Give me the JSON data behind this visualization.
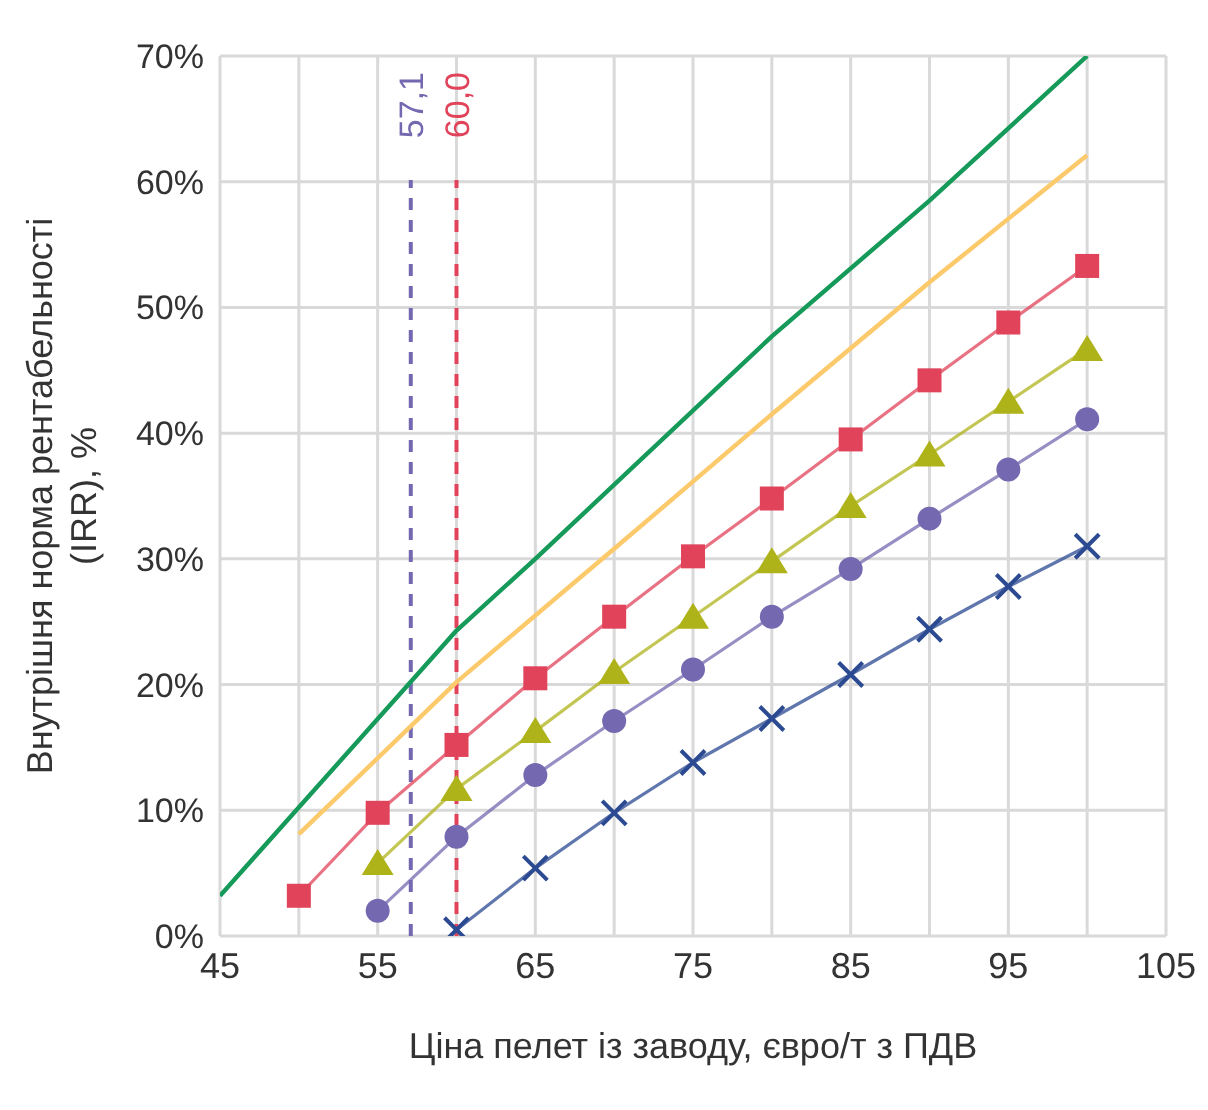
{
  "chart_data": {
    "type": "line",
    "xlabel": "Ціна пелет із заводу, євро/т з ПДВ",
    "ylabel": "Внутрішня норма рентабельності (IRR), %",
    "xlim": [
      45,
      105
    ],
    "xticks": [
      45,
      {
        "value": 50,
        "label": null
      },
      55,
      {
        "value": 60,
        "label": null
      },
      65,
      {
        "value": 70,
        "label": null
      },
      75,
      {
        "value": 80,
        "label": null
      },
      85,
      {
        "value": 90,
        "label": null
      },
      95,
      {
        "value": 100,
        "label": null
      },
      105
    ],
    "ylim": [
      0,
      70
    ],
    "yticks": [
      {
        "value": 0,
        "label": "0%"
      },
      {
        "value": 10,
        "label": "10%"
      },
      {
        "value": 20,
        "label": "20%"
      },
      {
        "value": 30,
        "label": "30%"
      },
      {
        "value": 40,
        "label": "40%"
      },
      {
        "value": 50,
        "label": "50%"
      },
      {
        "value": 60,
        "label": "60%"
      },
      {
        "value": 70,
        "label": "70%"
      }
    ],
    "grid": true,
    "line_style": "solid",
    "series": [
      {
        "color": "#159a5a",
        "marker": "none",
        "x": [
          45,
          60,
          65,
          80,
          90,
          100
        ],
        "values": [
          3.2,
          24.3,
          30,
          47.7,
          58.5,
          70
        ]
      },
      {
        "color": "#fcc96b",
        "marker": "none",
        "x": [
          50,
          60,
          70,
          80,
          90,
          100
        ],
        "values": [
          8.1,
          20.2,
          30.8,
          41.5,
          52,
          62.1
        ]
      },
      {
        "color": "#e0435a",
        "marker": "square",
        "x": [
          50,
          55,
          60,
          65,
          70,
          75,
          80,
          85,
          90,
          95,
          100
        ],
        "values": [
          3.2,
          9.8,
          15.2,
          20.5,
          25.4,
          30.2,
          34.8,
          39.5,
          44.2,
          48.8,
          53.3
        ]
      },
      {
        "color": "#afb31a",
        "marker": "triangle",
        "x": [
          55,
          60,
          65,
          70,
          75,
          80,
          85,
          90,
          95,
          100
        ],
        "values": [
          5.8,
          11.7,
          16.3,
          21,
          25.4,
          29.8,
          34.2,
          38.3,
          42.5,
          46.7
        ]
      },
      {
        "color": "#7468b0",
        "marker": "circle",
        "x": [
          55,
          60,
          65,
          70,
          75,
          80,
          85,
          90,
          95,
          100
        ],
        "values": [
          2,
          7.9,
          12.8,
          17.1,
          21.2,
          25.4,
          29.2,
          33.2,
          37.1,
          41.1
        ]
      },
      {
        "color": "#2b4a91",
        "marker": "cross",
        "x": [
          60,
          65,
          70,
          75,
          80,
          85,
          90,
          95,
          100
        ],
        "values": [
          0.5,
          5.4,
          9.8,
          13.8,
          17.3,
          20.8,
          24.4,
          27.8,
          31
        ]
      }
    ],
    "ref_lines": [
      {
        "axis": "x",
        "value": 57.1,
        "label": "57,1",
        "color": "#7468b0",
        "line_style": "dashed"
      },
      {
        "axis": "x",
        "value": 60,
        "label": "60,0",
        "color": "#e0435a",
        "line_style": "dashed"
      }
    ]
  }
}
